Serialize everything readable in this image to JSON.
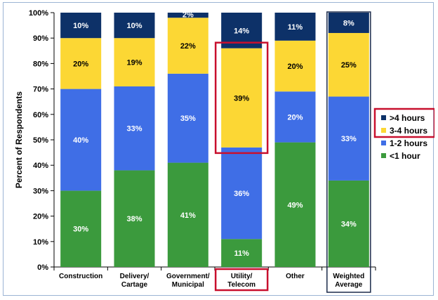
{
  "chart_data": {
    "type": "bar",
    "stacked": true,
    "ylabel": "Percent of Respondents",
    "ylim": [
      0,
      100
    ],
    "yticks": [
      "0%",
      "10%",
      "20%",
      "30%",
      "40%",
      "50%",
      "60%",
      "70%",
      "80%",
      "90%",
      "100%"
    ],
    "categories": [
      [
        "Construction"
      ],
      [
        "Delivery/",
        "Cartage"
      ],
      [
        "Government/",
        "Municipal"
      ],
      [
        "Utility/",
        "Telecom"
      ],
      [
        "Other"
      ],
      [
        "Weighted",
        "Average"
      ]
    ],
    "series": [
      {
        "name": "<1 hour",
        "color": "#3b9a3d",
        "label_color": "#ffffff",
        "values": [
          30,
          38,
          41,
          11,
          49,
          34
        ]
      },
      {
        "name": "1-2 hours",
        "color": "#3f6ee6",
        "label_color": "#ffffff",
        "values": [
          40,
          33,
          35,
          36,
          20,
          33
        ]
      },
      {
        "name": "3-4 hours",
        "color": "#fcd734",
        "label_color": "#000000",
        "values": [
          20,
          19,
          22,
          39,
          20,
          25
        ]
      },
      {
        "name": ">4 hours",
        "color": "#0d3168",
        "label_color": "#ffffff",
        "values": [
          10,
          10,
          2,
          14,
          11,
          8
        ]
      }
    ],
    "data_labels": [
      [
        "30%",
        "40%",
        "20%",
        "10%"
      ],
      [
        "38%",
        "33%",
        "19%",
        "10%"
      ],
      [
        "41%",
        "35%",
        "22%",
        "2%"
      ],
      [
        "11%",
        "36%",
        "39%",
        "14%"
      ],
      [
        "49%",
        "20%",
        "20%",
        "11%"
      ],
      [
        "34%",
        "33%",
        "25%",
        "8%"
      ]
    ],
    "legend_position": "right",
    "grid": false,
    "highlights": [
      {
        "type": "box",
        "target": "Utility/Telecom 3-4 hours segment",
        "color": "#c8102e"
      },
      {
        "type": "box",
        "target": "Utility/Telecom category label",
        "color": "#c8102e"
      },
      {
        "type": "box",
        "target": "legend >4 hours and 3-4 hours",
        "color": "#c8102e"
      },
      {
        "type": "box",
        "target": "Weighted Average column",
        "color": "#1b2a4a"
      }
    ]
  }
}
